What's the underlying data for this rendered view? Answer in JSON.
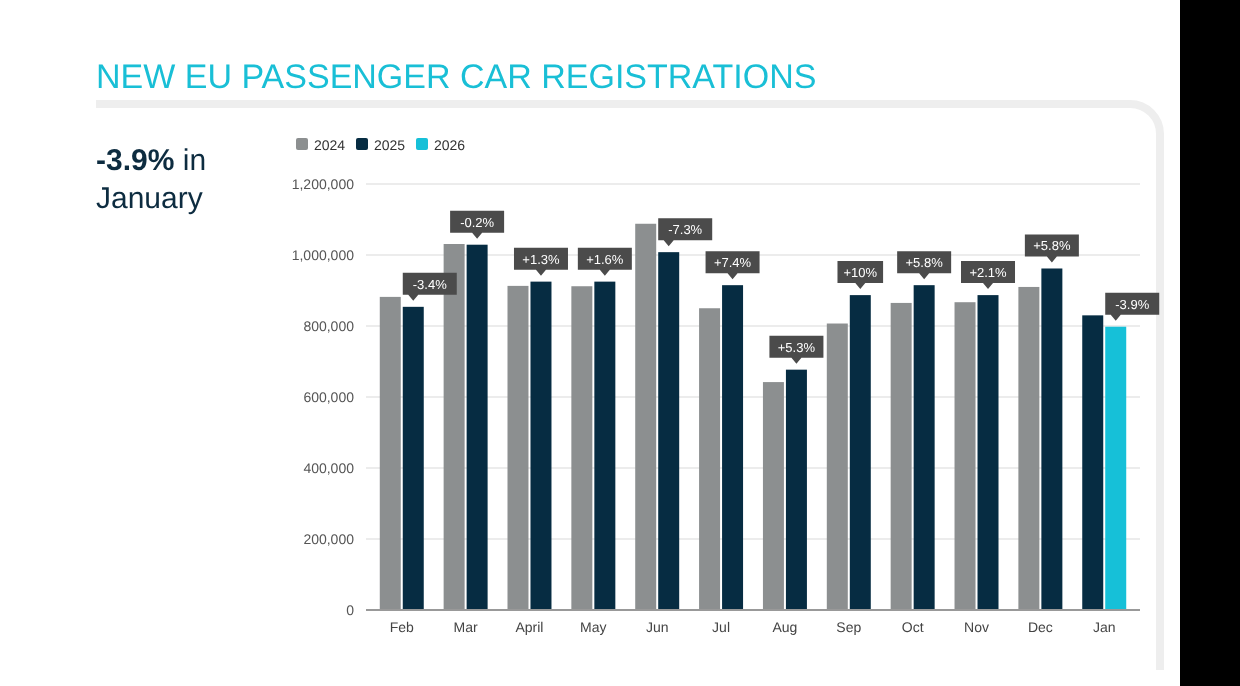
{
  "chart_data": {
    "type": "bar",
    "title": "NEW EU PASSENGER CAR REGISTRATIONS",
    "subtitle": "-3.9% in January",
    "categories": [
      "Feb",
      "Mar",
      "April",
      "May",
      "Jun",
      "Jul",
      "Aug",
      "Sep",
      "Oct",
      "Nov",
      "Dec",
      "Jan"
    ],
    "series": [
      {
        "name": "2024",
        "color": "#8c8f90",
        "values": [
          882000,
          1031000,
          913000,
          912000,
          1088000,
          850000,
          642000,
          807000,
          865000,
          867000,
          910000,
          null
        ]
      },
      {
        "name": "2025",
        "color": "#062c42",
        "values": [
          854000,
          1029000,
          925000,
          925000,
          1008000,
          915000,
          677000,
          887000,
          915000,
          887000,
          962000,
          830000
        ]
      },
      {
        "name": "2026",
        "color": "#16c0d8",
        "values": [
          null,
          null,
          null,
          null,
          null,
          null,
          null,
          null,
          null,
          null,
          null,
          798000
        ]
      }
    ],
    "ylim": [
      0,
      1200000
    ],
    "yticks": [
      {
        "value": 0,
        "label": "0"
      },
      {
        "value": 200000,
        "label": "200,000"
      },
      {
        "value": 400000,
        "label": "400,000"
      },
      {
        "value": 600000,
        "label": "600,000"
      },
      {
        "value": 800000,
        "label": "800,000"
      },
      {
        "value": 1000000,
        "label": "1,000,000"
      },
      {
        "value": 1200000,
        "label": "1,200,000"
      }
    ],
    "grid": "y",
    "legend": "top left",
    "annotations": [
      {
        "text": "-3.4%",
        "x": "Feb",
        "y": 854000
      },
      {
        "text": "-0.2%",
        "x": "Mar",
        "y": 1029000
      },
      {
        "text": "+1.3%",
        "x": "April",
        "y": 925000
      },
      {
        "text": "+1.6%",
        "x": "May",
        "y": 925000
      },
      {
        "text": "-7.3%",
        "x": "Jun",
        "y": 1008000
      },
      {
        "text": "+7.4%",
        "x": "Jul",
        "y": 915000
      },
      {
        "text": "+5.3%",
        "x": "Aug",
        "y": 677000
      },
      {
        "text": "+10%",
        "x": "Sep",
        "y": 887000
      },
      {
        "text": "+5.8%",
        "x": "Oct",
        "y": 915000
      },
      {
        "text": "+2.1%",
        "x": "Nov",
        "y": 887000
      },
      {
        "text": "+5.8%",
        "x": "Dec",
        "y": 962000
      },
      {
        "text": "-3.9%",
        "x": "Jan",
        "y": 798000
      }
    ]
  }
}
